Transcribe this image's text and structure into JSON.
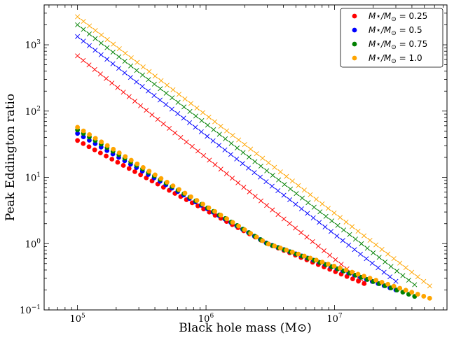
{
  "chart_data": {
    "type": "scatter",
    "title": "",
    "xlabel": "Black hole mass (M⊙)",
    "ylabel": "Peak Eddington ratio",
    "xscale": "log",
    "yscale": "log",
    "xlim": [
      55000,
      75000000
    ],
    "ylim": [
      0.1,
      4000
    ],
    "xticks": [
      100000,
      1000000,
      10000000
    ],
    "yticks": [
      0.1,
      1,
      10,
      100,
      1000
    ],
    "xtick_labels": [
      {
        "base": "10",
        "exp": "5"
      },
      {
        "base": "10",
        "exp": "6"
      },
      {
        "base": "10",
        "exp": "7"
      }
    ],
    "ytick_labels": [
      {
        "base": "10",
        "exp": "−1"
      },
      {
        "base": "10",
        "exp": "0"
      },
      {
        "base": "10",
        "exp": "1"
      },
      {
        "base": "10",
        "exp": "2"
      },
      {
        "base": "10",
        "exp": "3"
      }
    ],
    "legend_position": "top-right",
    "series": [
      {
        "name": "M★/M⊙ = 0.25",
        "legend_parts": {
          "a": "M",
          "b": "⋆/M",
          "c": "⊙",
          "d": " = 0.25"
        },
        "color": "#ff0000",
        "x_range": [
          100000,
          17000000
        ],
        "cross_y": [
          680,
          0.26
        ],
        "dot_y": [
          36,
          0.25
        ],
        "dot_knee": [
          3000000,
          1.0
        ],
        "n": 51
      },
      {
        "name": "M★/M⊙ = 0.5",
        "legend_parts": {
          "a": "M",
          "b": "⋆/M",
          "c": "⊙",
          "d": " = 0.5"
        },
        "color": "#0000ff",
        "x_range": [
          100000,
          30000000
        ],
        "cross_y": [
          1330,
          0.27
        ],
        "dot_y": [
          46,
          0.2
        ],
        "dot_knee": [
          3000000,
          1.0
        ],
        "n": 55
      },
      {
        "name": "M★/M⊙ = 0.75",
        "legend_parts": {
          "a": "M",
          "b": "⋆/M",
          "c": "⊙",
          "d": " = 0.75"
        },
        "color": "#008000",
        "x_range": [
          100000,
          42000000
        ],
        "cross_y": [
          2000,
          0.24
        ],
        "dot_y": [
          52,
          0.16
        ],
        "dot_knee": [
          3000000,
          1.0
        ],
        "n": 58
      },
      {
        "name": "M★/M⊙ = 1.0",
        "legend_parts": {
          "a": "M",
          "b": "⋆/M",
          "c": "⊙",
          "d": " = 1.0"
        },
        "color": "#ffa500",
        "x_range": [
          100000,
          55000000
        ],
        "cross_y": [
          2650,
          0.23
        ],
        "dot_y": [
          57,
          0.15
        ],
        "dot_knee": [
          3000000,
          1.0
        ],
        "n": 60
      }
    ]
  }
}
